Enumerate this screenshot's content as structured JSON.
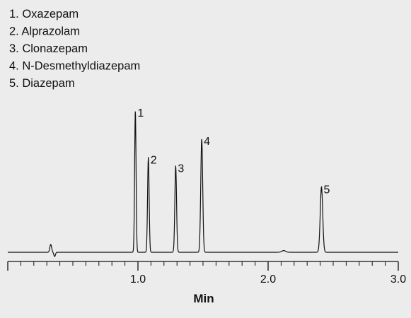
{
  "chart_data": {
    "type": "line",
    "title": "",
    "xlabel": "Min",
    "ylabel": "",
    "xlim": [
      0,
      3.0
    ],
    "ylim": [
      0,
      1.0
    ],
    "grid": false,
    "x_ticks": [
      {
        "value": 1.0,
        "label": "1.0"
      },
      {
        "value": 2.0,
        "label": "2.0"
      },
      {
        "value": 3.0,
        "label": "3.0"
      }
    ],
    "minor_tick_step": 0.1,
    "legend": {
      "placement": "top-left",
      "entries": [
        "1. Oxazepam",
        "2. Alprazolam",
        "3. Clonazepam",
        "4. N-Desmethyldiazepam",
        "5. Diazepam"
      ]
    },
    "baseline": 0.0,
    "peaks": [
      {
        "label": "1",
        "name": "Oxazepam",
        "rt": 0.98,
        "height": 1.0,
        "width": 0.0055
      },
      {
        "label": "2",
        "name": "Alprazolam",
        "rt": 1.08,
        "height": 0.67,
        "width": 0.006
      },
      {
        "label": "3",
        "name": "Clonazepam",
        "rt": 1.29,
        "height": 0.61,
        "width": 0.0065
      },
      {
        "label": "4",
        "name": "N-Desmethyldiazepam",
        "rt": 1.49,
        "height": 0.8,
        "width": 0.0075
      },
      {
        "label": "5",
        "name": "Diazepam",
        "rt": 2.41,
        "height": 0.46,
        "width": 0.0095
      }
    ],
    "artifacts": [
      {
        "rt": 0.33,
        "height": 0.055,
        "width": 0.007
      },
      {
        "rt": 0.36,
        "height": -0.03,
        "width": 0.006
      },
      {
        "rt": 2.12,
        "height": 0.012,
        "width": 0.015
      }
    ]
  }
}
